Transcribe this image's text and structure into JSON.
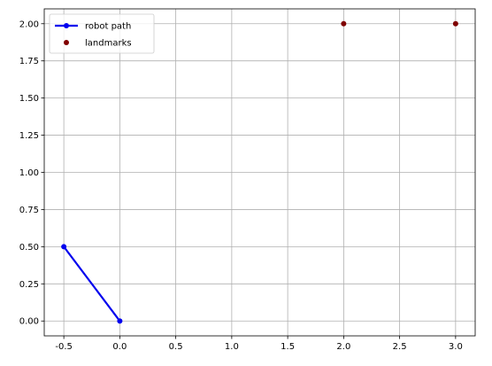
{
  "chart_data": {
    "type": "line",
    "title": "",
    "xlabel": "",
    "ylabel": "",
    "xlim": [
      -0.675,
      3.175
    ],
    "ylim": [
      -0.1,
      2.1
    ],
    "grid": true,
    "legend_position": "top-left",
    "x_ticks": [
      "-0.5",
      "0.0",
      "0.5",
      "1.0",
      "1.5",
      "2.0",
      "2.5",
      "3.0"
    ],
    "x_tick_values": [
      -0.5,
      0.0,
      0.5,
      1.0,
      1.5,
      2.0,
      2.5,
      3.0
    ],
    "y_ticks": [
      "0.00",
      "0.25",
      "0.50",
      "0.75",
      "1.00",
      "1.25",
      "1.50",
      "1.75",
      "2.00"
    ],
    "y_tick_values": [
      0.0,
      0.25,
      0.5,
      0.75,
      1.0,
      1.25,
      1.5,
      1.75,
      2.0
    ],
    "series": [
      {
        "name": "robot path",
        "style": "line-marker",
        "color": "#0000ee",
        "points": [
          [
            -0.5,
            0.5
          ],
          [
            0.0,
            0.0
          ]
        ]
      },
      {
        "name": "landmarks",
        "style": "marker",
        "color": "#800000",
        "points": [
          [
            2.0,
            2.0
          ],
          [
            3.0,
            2.0
          ]
        ]
      }
    ]
  }
}
